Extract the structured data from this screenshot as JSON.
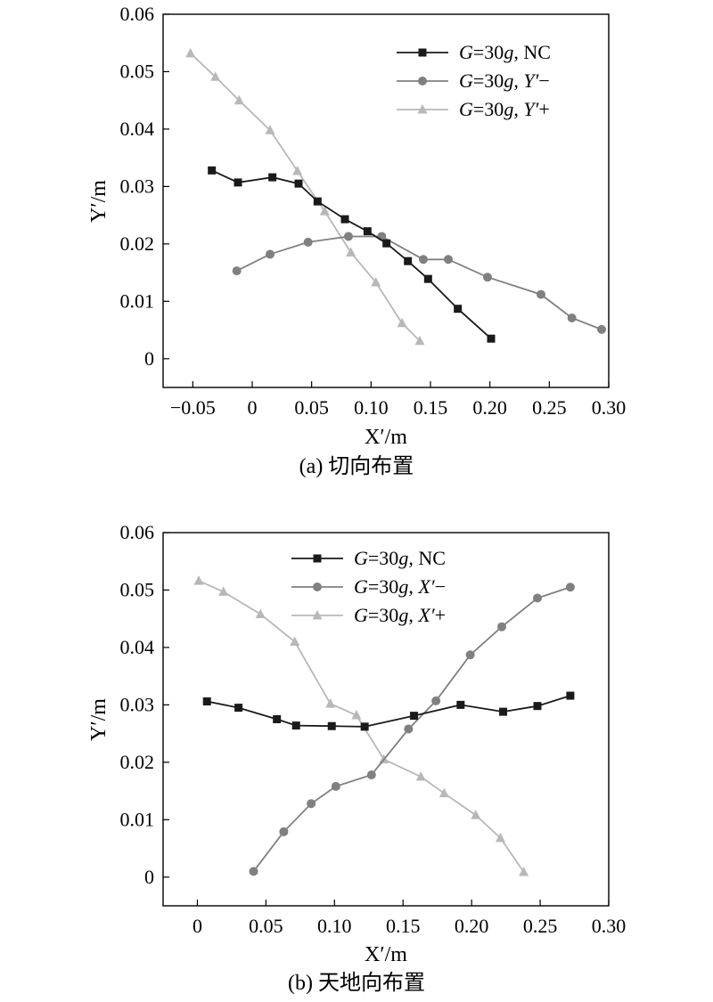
{
  "chart_data": [
    {
      "type": "line",
      "caption": "(a) 切向布置",
      "xlabel": "X′/m",
      "ylabel": "Y′/m",
      "xlim": [
        -0.075,
        0.3
      ],
      "ylim": [
        -0.005,
        0.06
      ],
      "xticks": [
        -0.05,
        0,
        0.05,
        0.1,
        0.15,
        0.2,
        0.25,
        0.3
      ],
      "xtick_labels": [
        "−0.05",
        "0",
        "0.05",
        "0.10",
        "0.15",
        "0.20",
        "0.25",
        "0.30"
      ],
      "yticks": [
        0,
        0.01,
        0.02,
        0.03,
        0.04,
        0.05,
        0.06
      ],
      "ytick_labels": [
        "0",
        "0.01",
        "0.02",
        "0.03",
        "0.04",
        "0.05",
        "0.06"
      ],
      "legend_position": "top-right",
      "grid": false,
      "series": [
        {
          "name": "G=30g, NC",
          "marker": "square",
          "color": "#1a1a1a",
          "x": [
            -0.034,
            -0.012,
            0.017,
            0.039,
            0.055,
            0.078,
            0.097,
            0.113,
            0.131,
            0.148,
            0.173,
            0.201
          ],
          "y": [
            0.0328,
            0.0307,
            0.0316,
            0.0305,
            0.0274,
            0.0243,
            0.0222,
            0.0201,
            0.017,
            0.0139,
            0.0087,
            0.0035
          ]
        },
        {
          "name": "G=30g, Y′−",
          "marker": "circle",
          "color": "#808080",
          "x": [
            -0.013,
            0.015,
            0.047,
            0.081,
            0.109,
            0.144,
            0.165,
            0.198,
            0.243,
            0.269,
            0.294
          ],
          "y": [
            0.0153,
            0.0182,
            0.0203,
            0.0213,
            0.0213,
            0.0173,
            0.0173,
            0.0142,
            0.0112,
            0.0071,
            0.0051
          ]
        },
        {
          "name": "G=30g, Y′+",
          "marker": "triangle",
          "color": "#b8b8b8",
          "x": [
            -0.052,
            -0.031,
            -0.011,
            0.015,
            0.038,
            0.061,
            0.083,
            0.104,
            0.126,
            0.141
          ],
          "y": [
            0.0532,
            0.0491,
            0.045,
            0.0398,
            0.0327,
            0.0257,
            0.0185,
            0.0133,
            0.0062,
            0.0031
          ]
        }
      ]
    },
    {
      "type": "line",
      "caption": "(b) 天地向布置",
      "xlabel": "X′/m",
      "ylabel": "Y′/m",
      "xlim": [
        -0.025,
        0.3
      ],
      "ylim": [
        -0.005,
        0.06
      ],
      "xticks": [
        0,
        0.05,
        0.1,
        0.15,
        0.2,
        0.25,
        0.3
      ],
      "xtick_labels": [
        "0",
        "0.05",
        "0.10",
        "0.15",
        "0.20",
        "0.25",
        "0.30"
      ],
      "yticks": [
        0,
        0.01,
        0.02,
        0.03,
        0.04,
        0.05,
        0.06
      ],
      "ytick_labels": [
        "0",
        "0.01",
        "0.02",
        "0.03",
        "0.04",
        "0.05",
        "0.06"
      ],
      "legend_position": "top-center",
      "grid": false,
      "series": [
        {
          "name": "G=30g, NC",
          "marker": "square",
          "color": "#1a1a1a",
          "x": [
            0.007,
            0.03,
            0.058,
            0.072,
            0.098,
            0.122,
            0.158,
            0.192,
            0.223,
            0.248,
            0.272
          ],
          "y": [
            0.0306,
            0.0295,
            0.0275,
            0.0264,
            0.0263,
            0.0262,
            0.0281,
            0.03,
            0.0288,
            0.0298,
            0.0316
          ]
        },
        {
          "name": "G=30g, X′−",
          "marker": "circle",
          "color": "#808080",
          "x": [
            0.041,
            0.063,
            0.083,
            0.101,
            0.127,
            0.154,
            0.174,
            0.199,
            0.222,
            0.248,
            0.272
          ],
          "y": [
            0.001,
            0.0079,
            0.0128,
            0.0158,
            0.0178,
            0.0258,
            0.0307,
            0.0387,
            0.0436,
            0.0486,
            0.0505
          ]
        },
        {
          "name": "G=30g, X′+",
          "marker": "triangle",
          "color": "#b8b8b8",
          "x": [
            0.001,
            0.019,
            0.046,
            0.071,
            0.097,
            0.116,
            0.136,
            0.163,
            0.18,
            0.203,
            0.221,
            0.238
          ],
          "y": [
            0.0516,
            0.0497,
            0.0458,
            0.041,
            0.0302,
            0.0282,
            0.0205,
            0.0175,
            0.0146,
            0.0108,
            0.0068,
            0.0009
          ]
        }
      ]
    }
  ]
}
